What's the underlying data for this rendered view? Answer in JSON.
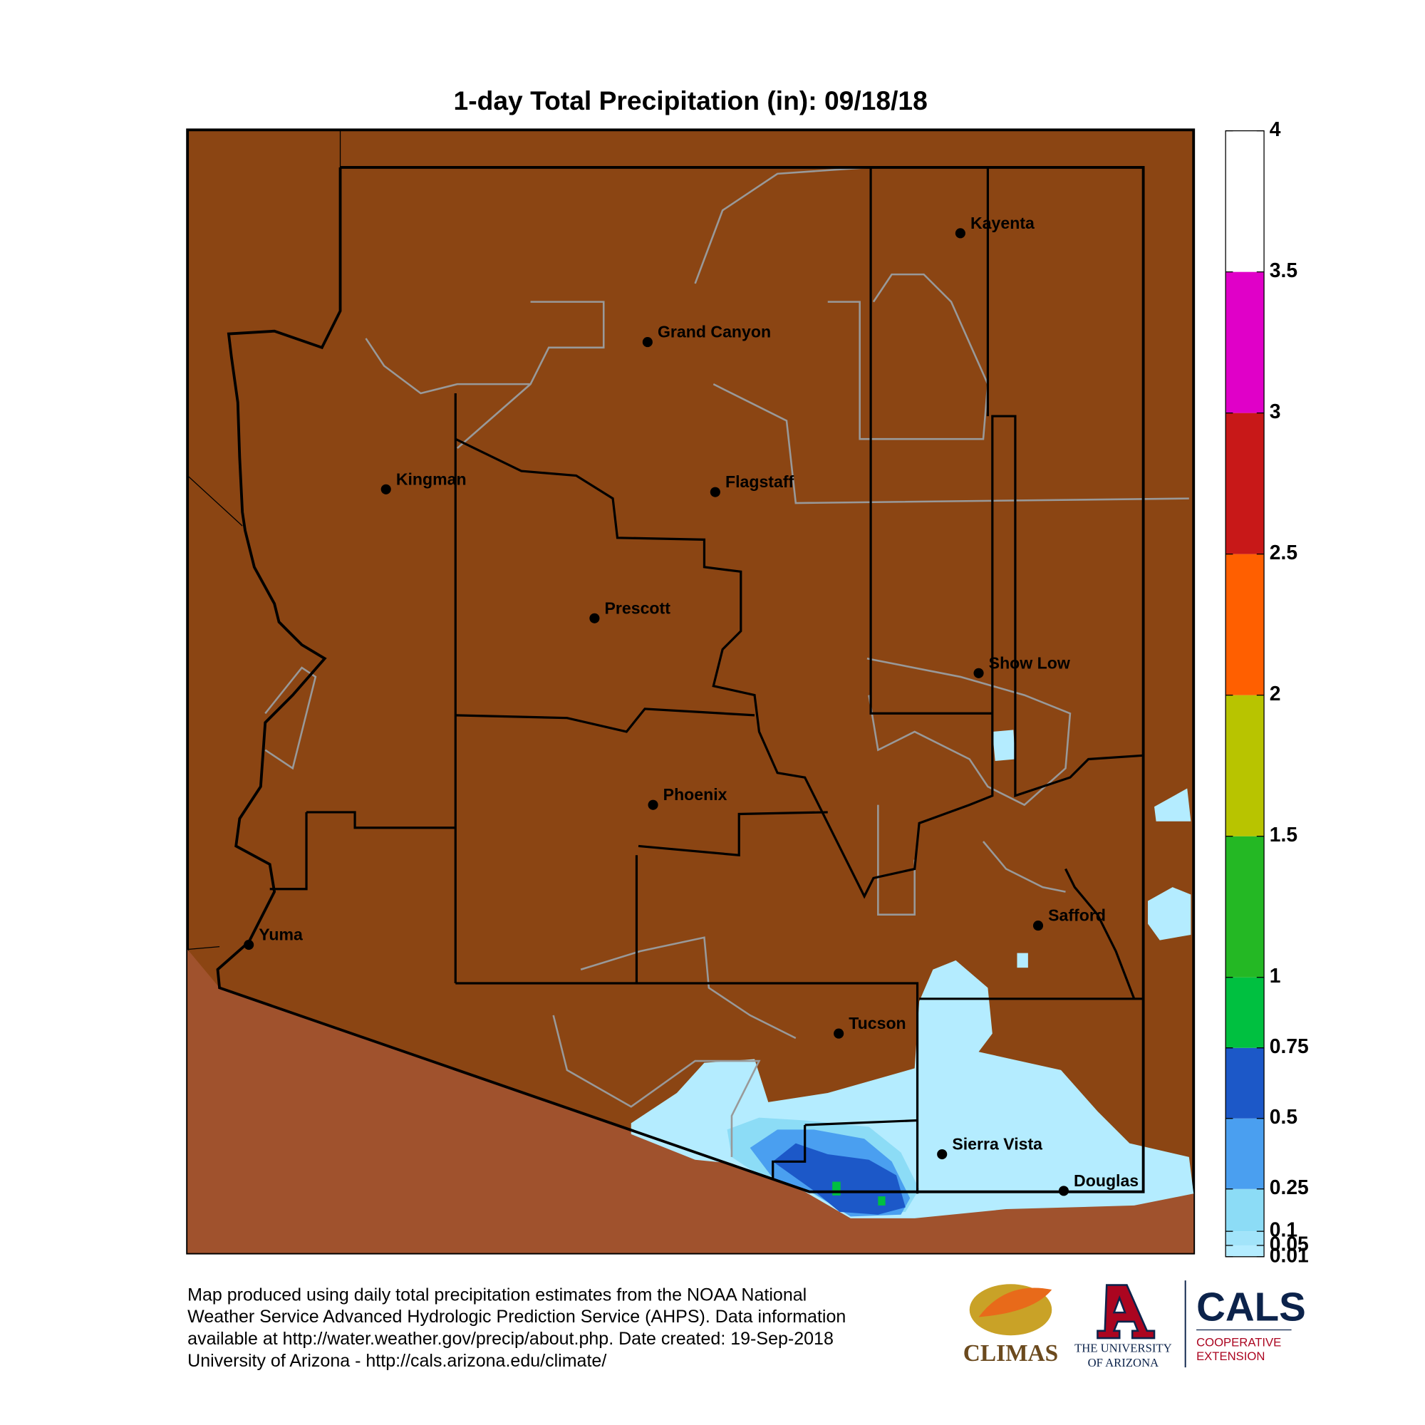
{
  "title": "1-day Total Precipitation (in): 09/18/18",
  "cities": [
    "Kayenta",
    "Grand Canyon",
    "Kingman",
    "Flagstaff",
    "Prescott",
    "Show Low",
    "Phoenix",
    "Safford",
    "Yuma",
    "Tucson",
    "Sierra Vista",
    "Douglas"
  ],
  "colorbar": {
    "lim": [
      0.01,
      4
    ],
    "ticks": [
      0.01,
      0.05,
      0.1,
      0.25,
      0.5,
      0.75,
      1,
      1.5,
      2,
      2.5,
      3,
      3.5,
      4
    ],
    "colors": [
      "#b4ecff",
      "#a2e4fa",
      "#8cdcf6",
      "#4a9ff0",
      "#1c58c8",
      "#00c040",
      "#24b824",
      "#b8c400",
      "#ff5f00",
      "#c81818",
      "#e000c8",
      "#ffffff"
    ]
  },
  "footer": [
    "Map produced using daily total precipitation estimates from the NOAA National",
    "Weather Service Advanced Hydrologic Prediction Service (AHPS). Data information",
    "available at http://water.weather.gov/precip/about.php. Date created: 19-Sep-2018",
    "University of Arizona - http://cals.arizona.edu/climate/"
  ],
  "logos": {
    "climas": "CLIMAS",
    "ua_line1": "THE UNIVERSITY",
    "ua_line2": "OF ARIZONA",
    "cals": "CALS",
    "cals_line1": "COOPERATIVE",
    "cals_line2": "EXTENSION"
  }
}
